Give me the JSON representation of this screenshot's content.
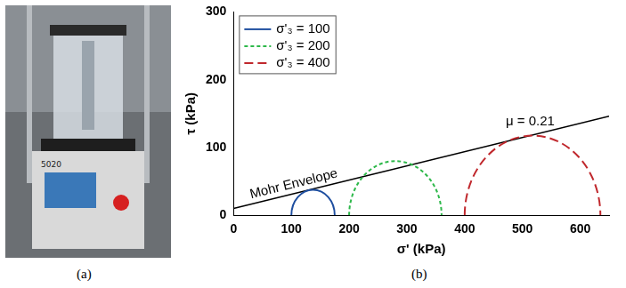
{
  "photo": {
    "panel_label": "(a)",
    "device_label": "5020"
  },
  "chart_data": {
    "type": "mohr",
    "panel_label": "(b)",
    "x_label": "σ' (kPa)",
    "y_label": "τ (kPa)",
    "xlim": [
      0,
      650
    ],
    "xticks": [
      0,
      100,
      200,
      300,
      400,
      500,
      600
    ],
    "ylim": [
      0,
      300
    ],
    "yticks": [
      0,
      100,
      200,
      300
    ],
    "grid": false,
    "legend": "upper left",
    "series": [
      {
        "name": "σ'₃ = 100",
        "type": "circle",
        "color": "#1f4fa0",
        "line_style": "solid",
        "sigma3": 100,
        "sigma1": 175
      },
      {
        "name": "σ'₃ = 200",
        "type": "circle",
        "color": "#2db84a",
        "line_style": "dashed",
        "sigma3": 200,
        "sigma1": 360
      },
      {
        "name": "σ'₃ = 400",
        "type": "circle",
        "color": "#c0282d",
        "line_style": "longdash",
        "sigma3": 400,
        "sigma1": 635
      }
    ],
    "envelope": {
      "label": "Mohr Envelope",
      "annotation": "μ = 0.21",
      "color": "#000000",
      "x": [
        0,
        650
      ],
      "values": [
        10,
        146
      ]
    }
  }
}
